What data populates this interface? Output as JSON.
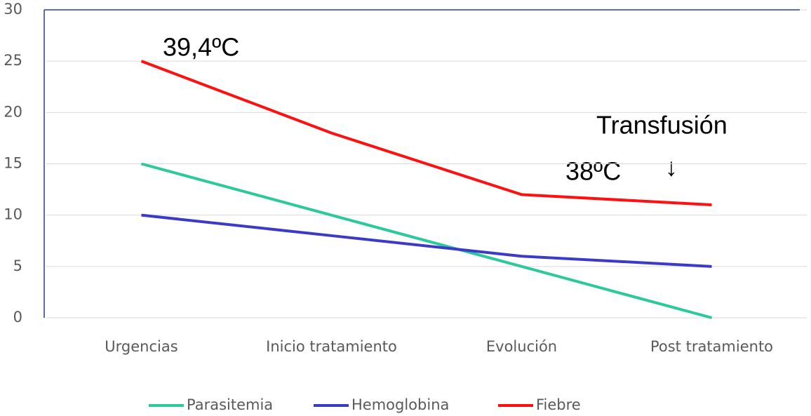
{
  "chart_data": {
    "type": "line",
    "categories": [
      "Urgencias",
      "Inicio tratamiento",
      "Evolución",
      "Post tratamiento"
    ],
    "series": [
      {
        "name": "Parasitemia",
        "color": "#2cc99c",
        "values": [
          15,
          10,
          5,
          0
        ]
      },
      {
        "name": "Hemoglobina",
        "color": "#3b3bc8",
        "values": [
          10,
          8,
          6,
          5
        ]
      },
      {
        "name": "Fiebre",
        "color": "#ff1010",
        "values": [
          25,
          18,
          12,
          11
        ]
      }
    ],
    "annotations": [
      "39,4ºC",
      "Transfusión",
      "↓",
      "38ºC"
    ],
    "ylim": [
      0,
      30
    ],
    "yticks": [
      0,
      5,
      10,
      15,
      20,
      25,
      30
    ],
    "grid": true,
    "legend": "bottom"
  }
}
